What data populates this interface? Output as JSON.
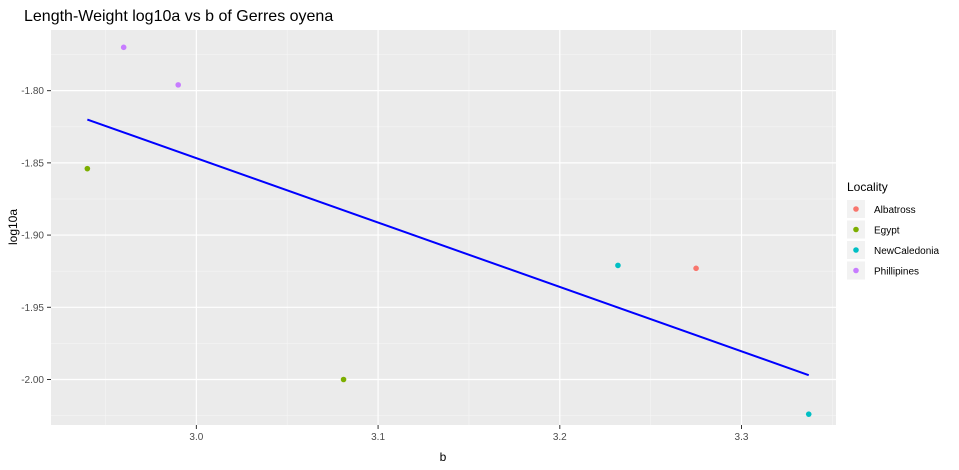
{
  "chart_data": {
    "type": "scatter",
    "title": "Length-Weight log10a vs b of Gerres oyena",
    "xlabel": "b",
    "ylabel": "log10a",
    "xlim": [
      2.92,
      3.352
    ],
    "ylim": [
      -2.0315,
      -1.758
    ],
    "x_ticks": [
      3.0,
      3.1,
      3.2,
      3.3
    ],
    "x_tick_labels": [
      "3.0",
      "3.1",
      "3.2",
      "3.3"
    ],
    "y_ticks": [
      -1.8,
      -1.85,
      -1.9,
      -1.95,
      -2.0
    ],
    "y_tick_labels": [
      "-1.80",
      "-1.85",
      "-1.90",
      "-1.95",
      "-2.00"
    ],
    "grid": true,
    "legend": {
      "title": "Locality",
      "position": "right",
      "entries": [
        {
          "name": "Albatross",
          "color": "#F8766D"
        },
        {
          "name": "Egypt",
          "color": "#7CAE00"
        },
        {
          "name": "NewCaledonia",
          "color": "#00BFC4"
        },
        {
          "name": "Phillipines",
          "color": "#C77CFF"
        }
      ]
    },
    "series": [
      {
        "name": "Albatross",
        "color": "#F8766D",
        "points": [
          {
            "x": 3.275,
            "y": -1.923
          }
        ]
      },
      {
        "name": "Egypt",
        "color": "#7CAE00",
        "points": [
          {
            "x": 2.94,
            "y": -1.854
          },
          {
            "x": 3.081,
            "y": -2.0
          }
        ]
      },
      {
        "name": "NewCaledonia",
        "color": "#00BFC4",
        "points": [
          {
            "x": 3.232,
            "y": -1.921
          },
          {
            "x": 3.337,
            "y": -2.024
          }
        ]
      },
      {
        "name": "Phillipines",
        "color": "#C77CFF",
        "points": [
          {
            "x": 2.96,
            "y": -1.77
          },
          {
            "x": 2.99,
            "y": -1.796
          }
        ]
      }
    ],
    "trend_line": {
      "color": "#0000FF",
      "points": [
        {
          "x": 2.94,
          "y": -1.82
        },
        {
          "x": 3.337,
          "y": -1.997
        }
      ]
    }
  }
}
